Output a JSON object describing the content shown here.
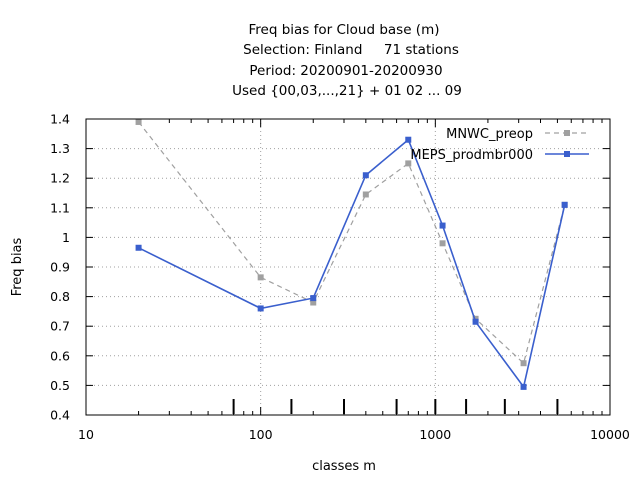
{
  "chart_data": {
    "type": "line",
    "title_lines": [
      "Freq bias  for Cloud base (m)",
      "Selection: Finland     71 stations",
      "Period: 20200901-20200930",
      "Used {00,03,...,21} + 01 02 ... 09"
    ],
    "xlabel": "classes m",
    "ylabel": "Freq bias",
    "x_scale": "log",
    "xlim": [
      10,
      10000
    ],
    "ylim": [
      0.4,
      1.4
    ],
    "x_ticks": [
      10,
      100,
      1000,
      10000
    ],
    "x_tick_labels": [
      "10",
      "100",
      "1000",
      "10000"
    ],
    "y_ticks": [
      0.4,
      0.5,
      0.6,
      0.7,
      0.8,
      0.9,
      1.0,
      1.1,
      1.2,
      1.3,
      1.4
    ],
    "y_tick_labels": [
      "0.4",
      "0.5",
      "0.6",
      "0.7",
      "0.8",
      "0.9",
      "1",
      "1.1",
      "1.2",
      "1.3",
      "1.4"
    ],
    "grid": true,
    "legend_position": "top-right",
    "class_markers": [
      70,
      150,
      300,
      600,
      1000,
      1500,
      2500,
      5000
    ],
    "series": [
      {
        "name": "MNWC_preop",
        "color": "#a0a0a0",
        "dash": true,
        "x": [
          20,
          100,
          200,
          400,
          700,
          1100,
          1700,
          3200,
          5500
        ],
        "values": [
          1.39,
          0.865,
          0.78,
          1.145,
          1.25,
          0.98,
          0.725,
          0.575,
          1.11
        ]
      },
      {
        "name": "MEPS_prodmbr000",
        "color": "#3a5fcd",
        "dash": false,
        "x": [
          20,
          100,
          200,
          400,
          700,
          1100,
          1700,
          3200,
          5500
        ],
        "values": [
          0.965,
          0.76,
          0.795,
          1.21,
          1.33,
          1.04,
          0.715,
          0.495,
          1.11
        ]
      }
    ]
  }
}
